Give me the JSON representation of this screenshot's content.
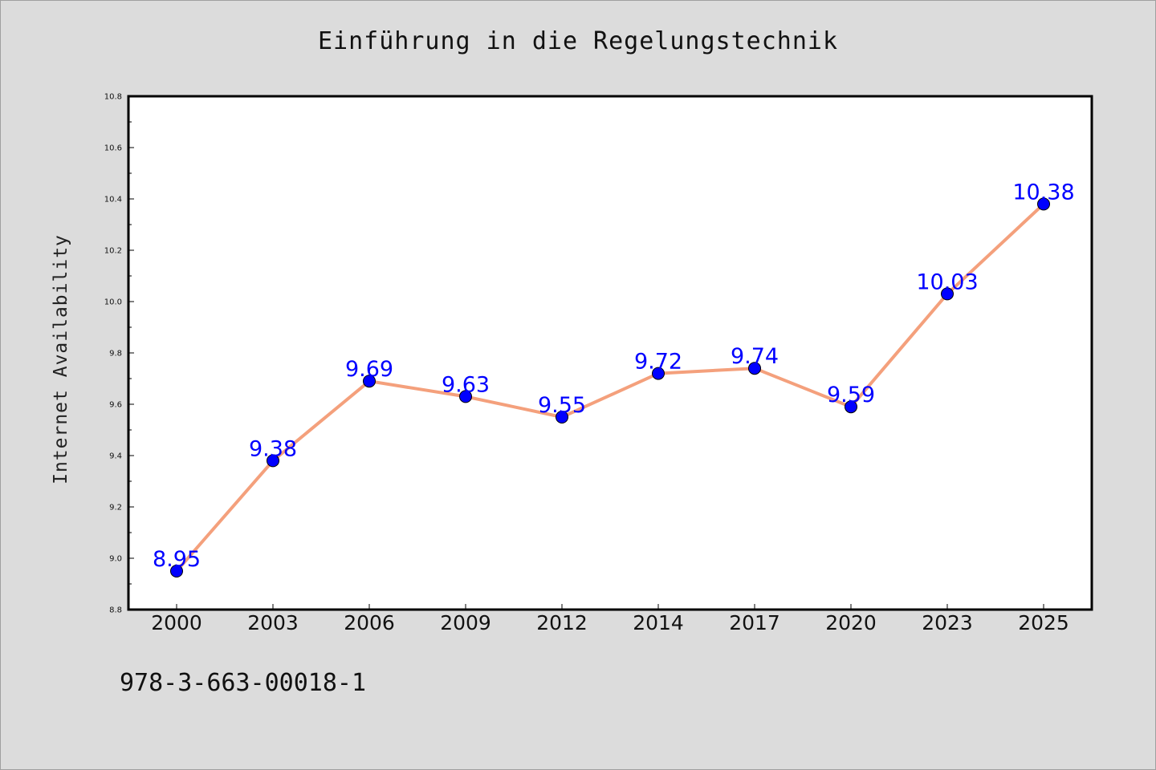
{
  "chart_data": {
    "type": "line",
    "title": "Einführung in die Regelungstechnik",
    "xlabel": "",
    "ylabel": "Internet Availability",
    "categories": [
      "2000",
      "2003",
      "2006",
      "2009",
      "2012",
      "2014",
      "2017",
      "2020",
      "2023",
      "2025"
    ],
    "series": [
      {
        "values": [
          8.95,
          9.38,
          9.69,
          9.63,
          9.55,
          9.72,
          9.74,
          9.59,
          10.03,
          10.38
        ],
        "line_color": "#f4a07c",
        "marker_color": "#0000ff"
      }
    ],
    "data_labels": [
      "8.95",
      "9.38",
      "9.69",
      "9.63",
      "9.55",
      "9.72",
      "9.74",
      "9.59",
      "10.03",
      "10.38"
    ],
    "ylim": [
      8.8,
      10.8
    ],
    "yticks": [
      "8.8",
      "9.0",
      "9.2",
      "9.4",
      "9.6",
      "9.8",
      "10.0",
      "10.2",
      "10.4",
      "10.6",
      "10.8"
    ],
    "grid": false,
    "legend": "none"
  },
  "footer": {
    "isbn": "978-3-663-00018-1"
  }
}
